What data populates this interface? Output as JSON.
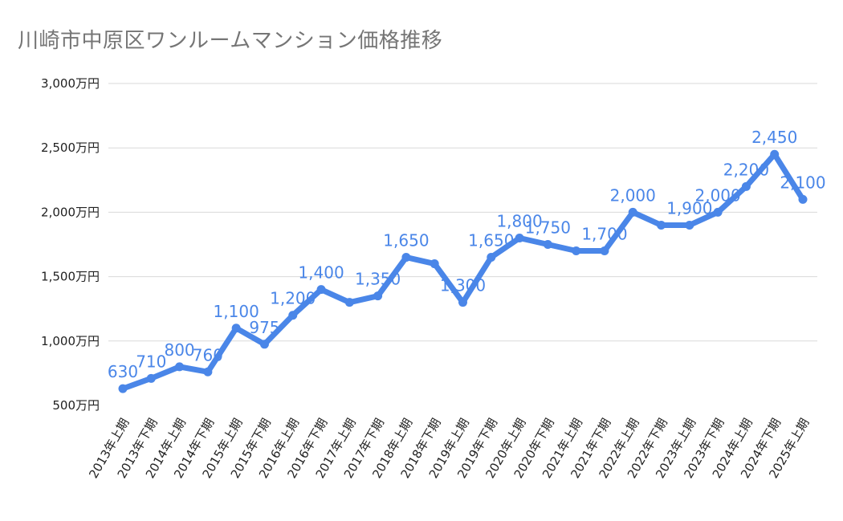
{
  "chart_data": {
    "type": "line",
    "title": "川崎市中原区ワンルームマンション価格推移",
    "xlabel": "",
    "ylabel": "",
    "ylim": [
      500,
      3000
    ],
    "yticks": [
      "500万円",
      "1,000万円",
      "1,500万円",
      "2,000万円",
      "2,500万円",
      "3,000万円"
    ],
    "grid": true,
    "categories": [
      "2013年上期",
      "2013年下期",
      "2014年上期",
      "2014年下期",
      "2015年上期",
      "2015年下期",
      "2016年上期",
      "2016年下期",
      "2017年上期",
      "2017年下期",
      "2018年上期",
      "2018年下期",
      "2019年上期",
      "2019年下期",
      "2020年上期",
      "2020年下期",
      "2021年上期",
      "2021年下期",
      "2022年上期",
      "2022年下期",
      "2023年上期",
      "2023年下期",
      "2024年上期",
      "2024年下期",
      "2025年上期"
    ],
    "values": [
      630,
      710,
      800,
      760,
      1100,
      975,
      1200,
      1400,
      1300,
      1350,
      1650,
      1600,
      1300,
      1650,
      1800,
      1750,
      1700,
      1700,
      2000,
      1900,
      1900,
      2000,
      2200,
      2450,
      2100
    ],
    "data_labels": [
      "630",
      "710",
      "800",
      "760",
      "1,100",
      "975",
      "1,200",
      "1,400",
      "",
      "1,350",
      "1,650",
      "",
      "1,300",
      "1,650",
      "1,800",
      "1,750",
      "",
      "1,700",
      "2,000",
      "",
      "1,900",
      "2,000",
      "2,200",
      "2,450",
      "2,100"
    ],
    "color": "#4a86e8"
  }
}
